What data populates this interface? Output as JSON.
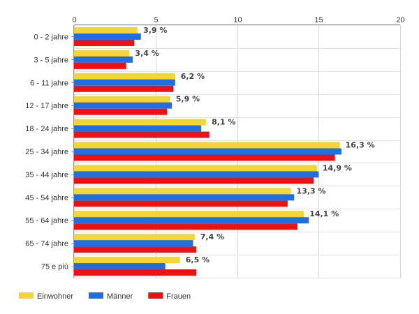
{
  "chart_data": {
    "type": "bar",
    "orientation": "horizontal",
    "categories": [
      "0 - 2 jahre",
      "3 - 5 jahre",
      "6 - 11 jahre",
      "12 - 17 jahre",
      "18 - 24 jahre",
      "25 - 34 jahre",
      "35 - 44 jahre",
      "45 - 54 jahre",
      "55 - 64 jahre",
      "65 - 74 jahre",
      "75 e più"
    ],
    "series": [
      {
        "name": "Einwohner",
        "color": "#f5d535",
        "values": [
          3.9,
          3.4,
          6.2,
          5.9,
          8.1,
          16.3,
          14.9,
          13.3,
          14.1,
          7.4,
          6.5
        ]
      },
      {
        "name": "Männer",
        "color": "#1f6fe0",
        "values": [
          4.1,
          3.6,
          6.2,
          6.0,
          7.8,
          16.4,
          15.0,
          13.5,
          14.4,
          7.3,
          5.6
        ]
      },
      {
        "name": "Frauen",
        "color": "#ee1111",
        "values": [
          3.7,
          3.2,
          6.1,
          5.7,
          8.3,
          16.0,
          14.7,
          13.1,
          13.7,
          7.5,
          7.5
        ]
      }
    ],
    "data_labels": [
      "3,9 %",
      "3,4 %",
      "6,2 %",
      "5,9 %",
      "8,1 %",
      "16,3 %",
      "14,9 %",
      "13,3 %",
      "14,1 %",
      "7,4 %",
      "6,5 %"
    ],
    "x_ticks": [
      "0",
      "5",
      "10",
      "15",
      "20"
    ],
    "xlim": [
      0,
      20
    ],
    "axis_position": "top",
    "grid": true,
    "legend_position": "bottom-left"
  }
}
